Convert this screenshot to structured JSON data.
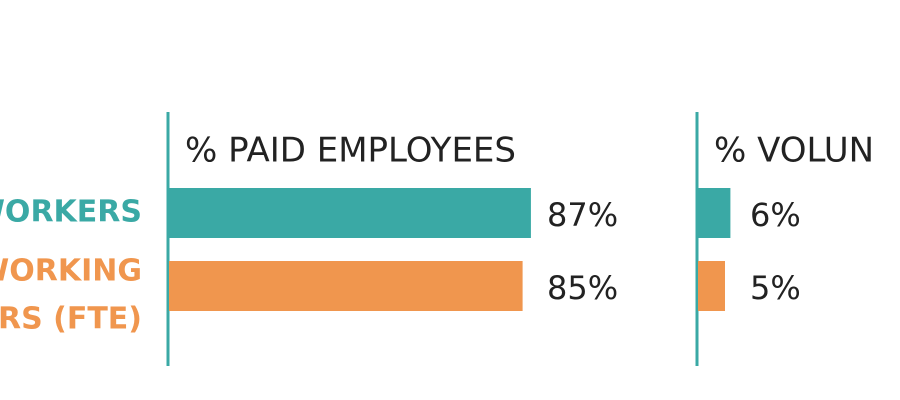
{
  "chart_data": {
    "type": "bar",
    "categories": [
      [
        "WORKERS"
      ],
      [
        "WORKING",
        "RS (FTE)"
      ]
    ],
    "colors": [
      "#3aa9a5",
      "#f0964e"
    ],
    "panels": [
      {
        "title": "% PAID EMPLOYEES",
        "values": [
          87,
          85
        ],
        "value_labels": [
          "87%",
          "85%"
        ]
      },
      {
        "title": "% VOLUN",
        "values": [
          6,
          5
        ],
        "value_labels": [
          "6%",
          "5%"
        ]
      }
    ]
  }
}
